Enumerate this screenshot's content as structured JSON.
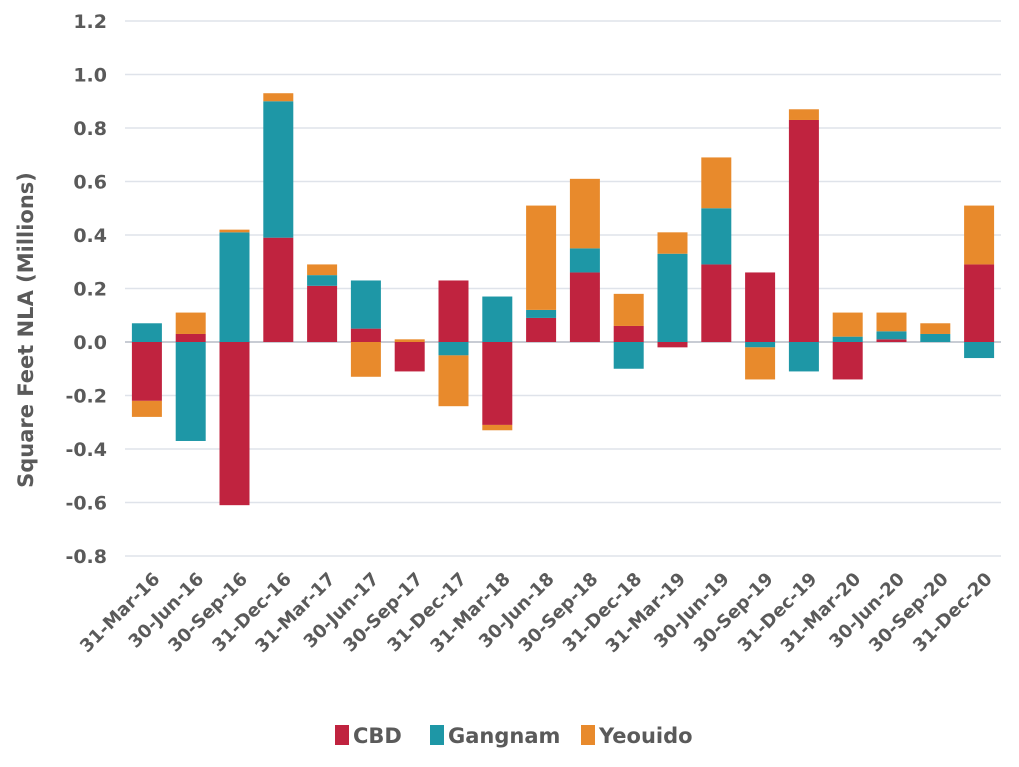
{
  "chart_data": {
    "type": "bar",
    "stacked": true,
    "title": "",
    "xlabel": "",
    "ylabel": "Square Feet NLA (Millions)",
    "ylim": [
      -0.8,
      1.2
    ],
    "yticks": [
      1.2,
      1.0,
      0.8,
      0.6,
      0.4,
      0.2,
      0.0,
      -0.2,
      -0.4,
      -0.6,
      -0.8
    ],
    "ytick_labels": [
      "1.2",
      "1.0",
      "0.8",
      "0.6",
      "0.4",
      "0.2",
      "0.0",
      "-0.2",
      "-0.4",
      "-0.6",
      "-0.8"
    ],
    "grid": true,
    "legend_position": "bottom",
    "categories": [
      "31-Mar-16",
      "30-Jun-16",
      "30-Sep-16",
      "31-Dec-16",
      "31-Mar-17",
      "30-Jun-17",
      "30-Sep-17",
      "31-Dec-17",
      "31-Mar-18",
      "30-Jun-18",
      "30-Sep-18",
      "31-Dec-18",
      "31-Mar-19",
      "30-Jun-19",
      "30-Sep-19",
      "31-Dec-19",
      "31-Mar-20",
      "30-Jun-20",
      "30-Sep-20",
      "31-Dec-20"
    ],
    "series": [
      {
        "name": "CBD",
        "color": "#c0233f",
        "values": [
          -0.22,
          0.03,
          -0.61,
          0.39,
          0.21,
          0.05,
          -0.11,
          0.23,
          -0.31,
          0.09,
          0.26,
          0.06,
          -0.02,
          0.29,
          0.26,
          0.83,
          -0.14,
          0.01,
          0.0,
          0.29
        ]
      },
      {
        "name": "Gangnam",
        "color": "#1e97a6",
        "values": [
          0.07,
          -0.37,
          0.41,
          0.51,
          0.04,
          0.18,
          0.0,
          -0.05,
          0.17,
          0.03,
          0.09,
          -0.1,
          0.33,
          0.21,
          -0.02,
          -0.11,
          0.02,
          0.03,
          0.03,
          -0.06
        ]
      },
      {
        "name": "Yeouido",
        "color": "#e88a2c",
        "values": [
          -0.06,
          0.08,
          0.01,
          0.03,
          0.04,
          -0.13,
          0.01,
          -0.19,
          -0.02,
          0.39,
          0.26,
          0.12,
          0.08,
          0.19,
          -0.12,
          0.04,
          0.09,
          0.07,
          0.04,
          0.22
        ]
      }
    ]
  }
}
